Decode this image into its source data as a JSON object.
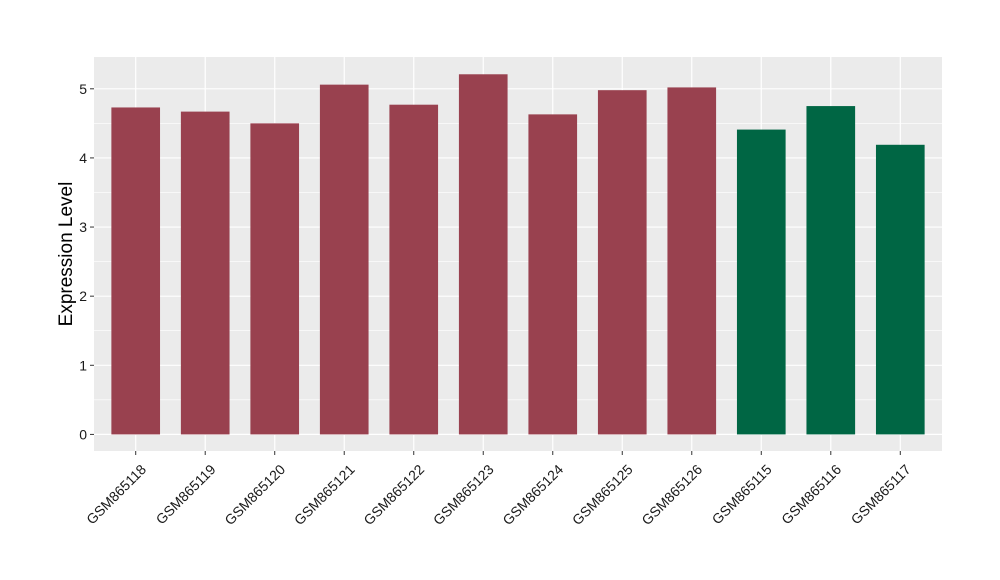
{
  "chart_data": {
    "type": "bar",
    "title": "",
    "xlabel": "",
    "ylabel": "Expression Level",
    "ylim": [
      -0.24,
      5.46
    ],
    "yticks": [
      0,
      1,
      2,
      3,
      4,
      5
    ],
    "grid": true,
    "legend": "none",
    "categories": [
      "GSM865118",
      "GSM865119",
      "GSM865120",
      "GSM865121",
      "GSM865122",
      "GSM865123",
      "GSM865124",
      "GSM865125",
      "GSM865126",
      "GSM865115",
      "GSM865116",
      "GSM865117"
    ],
    "values": [
      4.73,
      4.67,
      4.5,
      5.06,
      4.77,
      5.21,
      4.63,
      4.98,
      5.02,
      4.41,
      4.75,
      4.19
    ],
    "groups": [
      "a",
      "a",
      "a",
      "a",
      "a",
      "a",
      "a",
      "a",
      "a",
      "b",
      "b",
      "b"
    ],
    "colors": {
      "a": "#99414f",
      "b": "#006644"
    },
    "panel_background": "#ebebeb",
    "grid_color": "#ffffff"
  }
}
